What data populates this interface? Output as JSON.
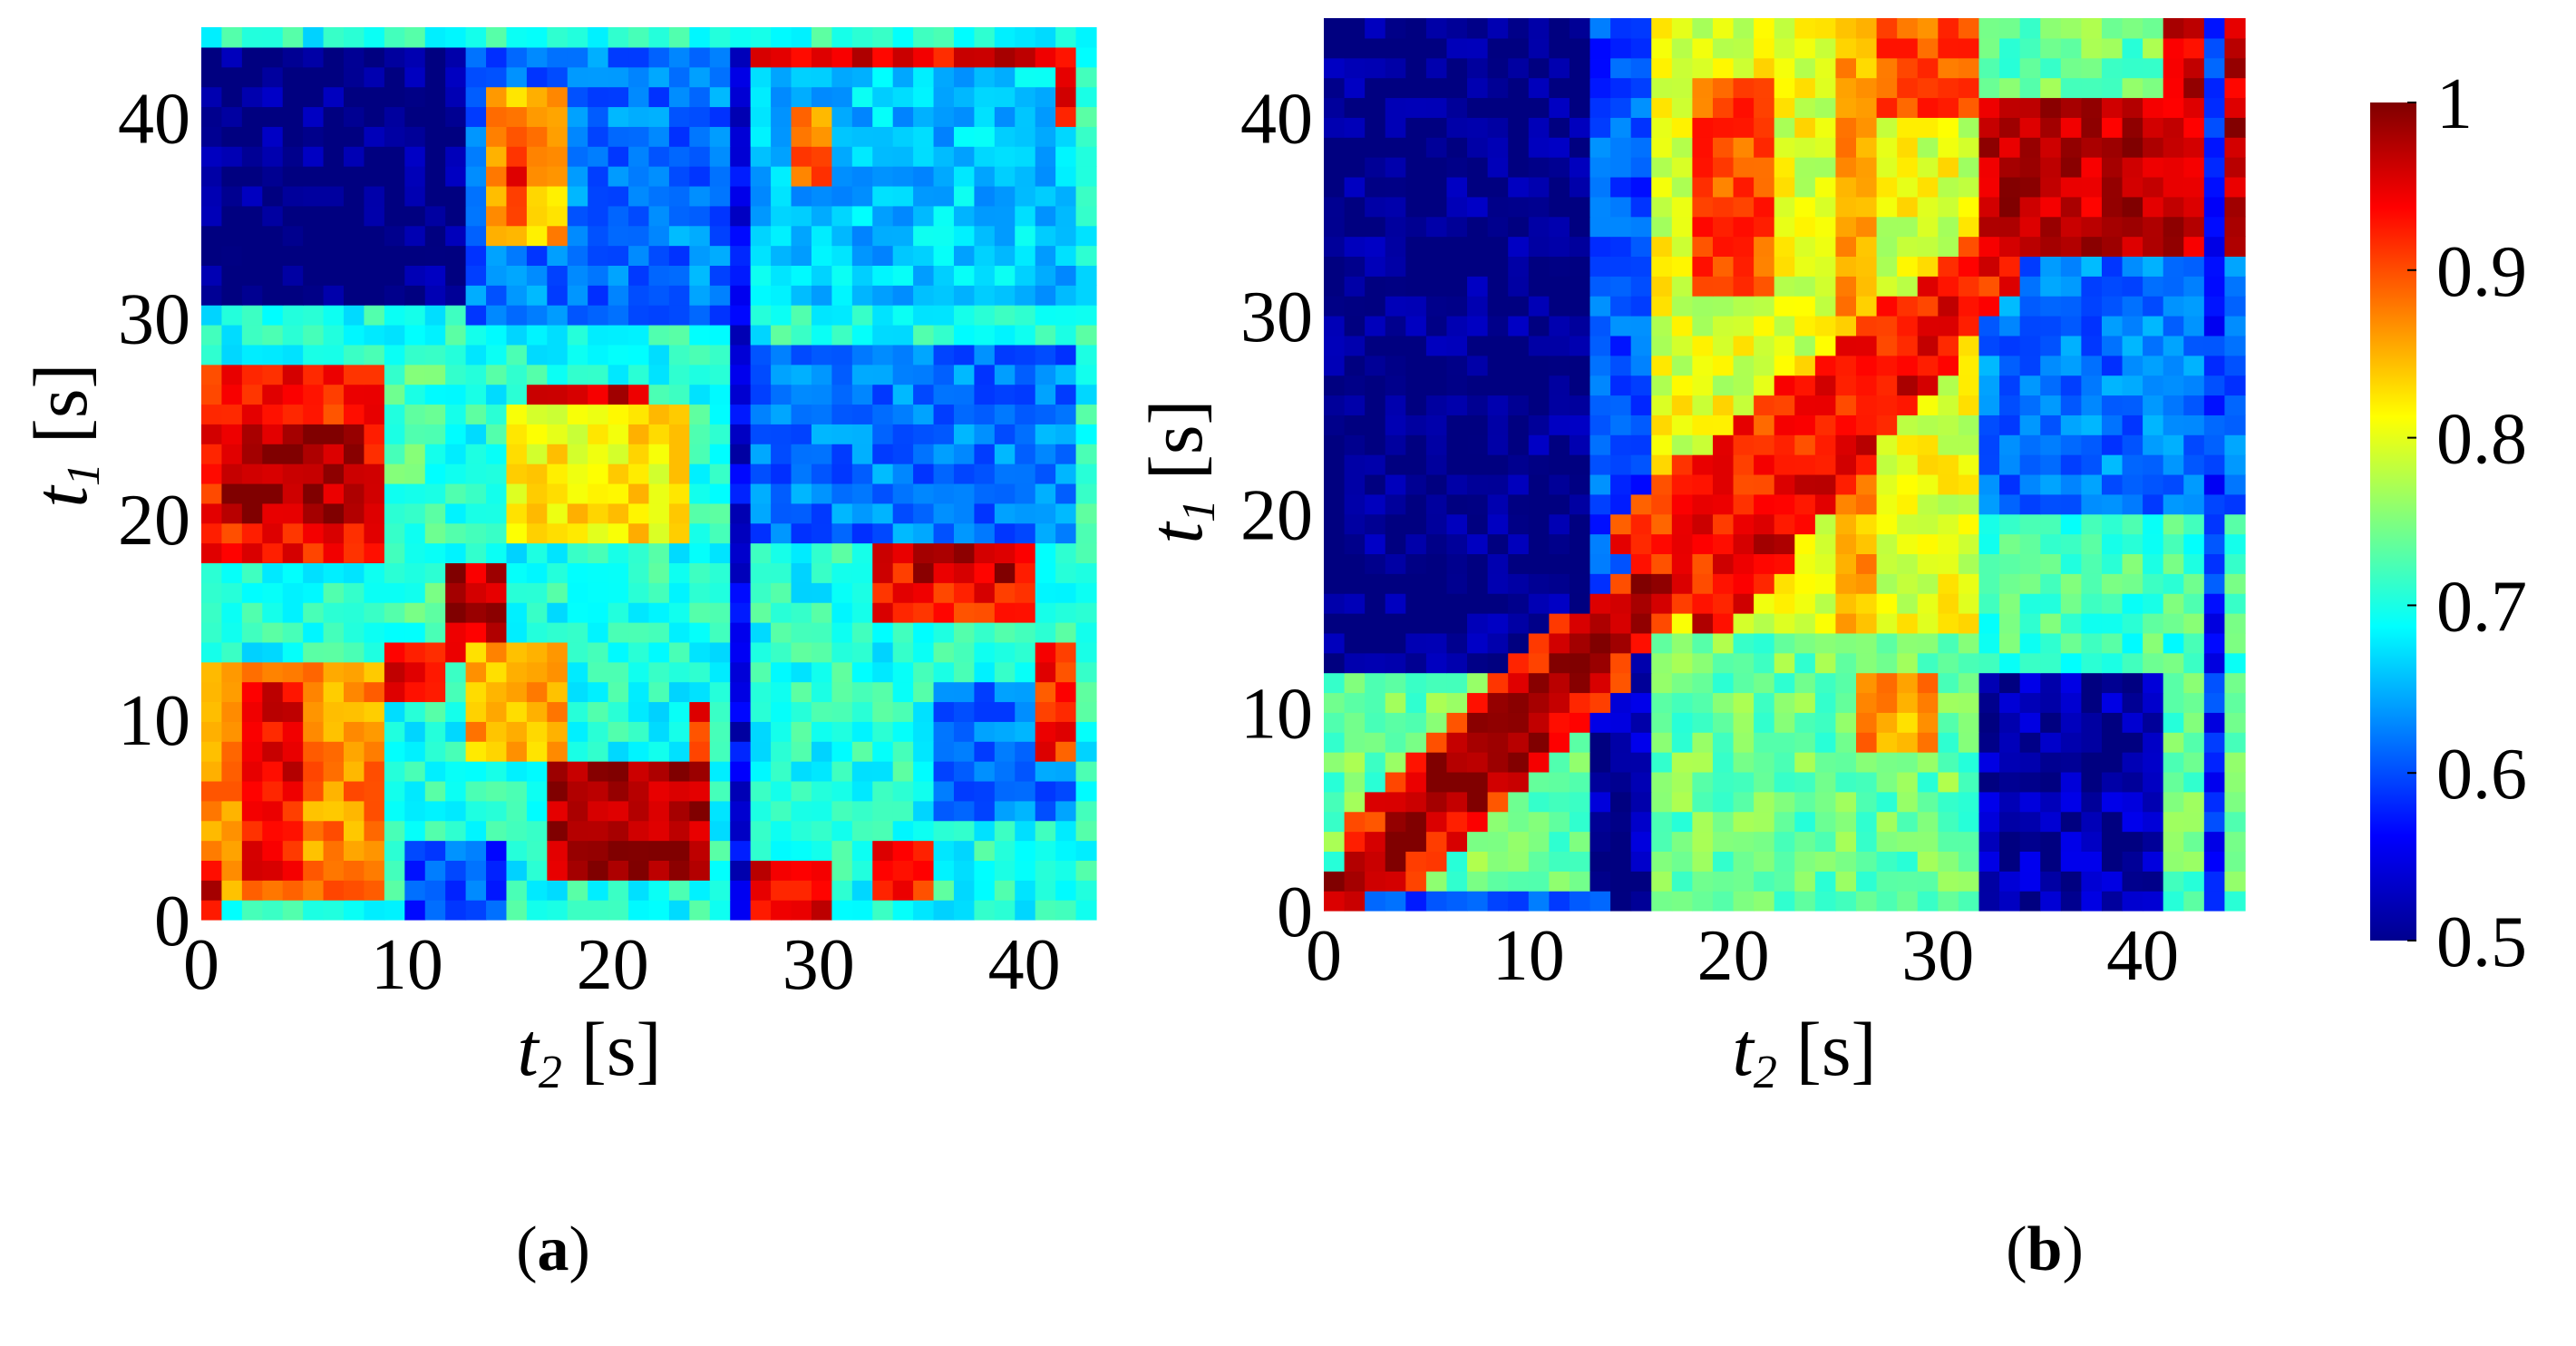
{
  "chart_data": [
    {
      "panel": "(a)",
      "panel_letter": "a",
      "type": "heatmap",
      "xlabel": "t2 [s]",
      "ylabel": "t1 [s]",
      "xlim": [
        0,
        43.5
      ],
      "ylim": [
        0,
        44.5
      ],
      "xticks": [
        "0",
        "10",
        "20",
        "30",
        "40"
      ],
      "yticks": [
        "0",
        "10",
        "20",
        "30",
        "40"
      ],
      "grid_resolution_s": 1.0,
      "background_value": 0.7,
      "regions": [
        {
          "t2": [
            0,
            13
          ],
          "t1": [
            31,
            44.5
          ],
          "value": 0.5
        },
        {
          "t2": [
            13.5,
            26
          ],
          "t1": [
            30,
            44.5
          ],
          "value": 0.62
        },
        {
          "t2": [
            14.5,
            18
          ],
          "t1": [
            34,
            42
          ],
          "value": 0.85
        },
        {
          "t2": [
            15.5,
            16.5
          ],
          "t1": [
            35,
            40
          ],
          "value": 0.93
        },
        {
          "t2": [
            26.5,
            43.5
          ],
          "t1": [
            31,
            43.5
          ],
          "value": 0.66
        },
        {
          "t2": [
            29,
            31
          ],
          "t1": [
            37,
            41
          ],
          "value": 0.88
        },
        {
          "t2": [
            26,
            43.5
          ],
          "t1": [
            43,
            44.5
          ],
          "value": 0.95
        },
        {
          "t2": [
            42,
            43.5
          ],
          "t1": [
            40,
            43
          ],
          "value": 0.95
        },
        {
          "t2": [
            0,
            9.5
          ],
          "t1": [
            18,
            28
          ],
          "value": 0.93
        },
        {
          "t2": [
            1,
            8
          ],
          "t1": [
            20,
            25
          ],
          "value": 0.98
        },
        {
          "t2": [
            9.5,
            12
          ],
          "t1": [
            15,
            28
          ],
          "value": 0.72
        },
        {
          "t2": [
            15,
            24
          ],
          "t1": [
            19,
            26
          ],
          "value": 0.82
        },
        {
          "t2": [
            16,
            22
          ],
          "t1": [
            26,
            27
          ],
          "value": 0.97
        },
        {
          "t2": [
            26,
            43
          ],
          "t1": [
            19,
            29
          ],
          "value": 0.62
        },
        {
          "t2": [
            33,
            41
          ],
          "t1": [
            15,
            19
          ],
          "value": 0.93
        },
        {
          "t2": [
            35,
            40
          ],
          "t1": [
            17,
            19
          ],
          "value": 0.97
        },
        {
          "t2": [
            26,
            27.5
          ],
          "t1": [
            0,
            44
          ],
          "value": 0.55
        },
        {
          "t2": [
            0,
            9.5
          ],
          "t1": [
            1,
            13
          ],
          "value": 0.87
        },
        {
          "t2": [
            2,
            5
          ],
          "t1": [
            2,
            12
          ],
          "value": 0.94
        },
        {
          "t2": [
            9.5,
            12.5
          ],
          "t1": [
            11,
            14
          ],
          "value": 0.95
        },
        {
          "t2": [
            12.5,
            15.5
          ],
          "t1": [
            13,
            18
          ],
          "value": 0.97
        },
        {
          "t2": [
            13.5,
            18
          ],
          "t1": [
            8,
            14
          ],
          "value": 0.85
        },
        {
          "t2": [
            17.5,
            25
          ],
          "t1": [
            2,
            8
          ],
          "value": 0.98
        },
        {
          "t2": [
            24,
            25.5
          ],
          "t1": [
            8,
            11
          ],
          "value": 0.92
        },
        {
          "t2": [
            27.5,
            31
          ],
          "t1": [
            0,
            3
          ],
          "value": 0.95
        },
        {
          "t2": [
            33,
            36
          ],
          "t1": [
            1,
            4
          ],
          "value": 0.93
        },
        {
          "t2": [
            10,
            15
          ],
          "t1": [
            0,
            4
          ],
          "value": 0.6
        },
        {
          "t2": [
            36,
            43.5
          ],
          "t1": [
            5,
            12
          ],
          "value": 0.62
        },
        {
          "t2": [
            41.5,
            43.5
          ],
          "t1": [
            8,
            14
          ],
          "value": 0.92
        },
        {
          "t2": [
            0,
            1.5
          ],
          "t1": [
            0,
            3
          ],
          "value": 0.96
        }
      ]
    },
    {
      "panel": "(b)",
      "panel_letter": "b",
      "type": "heatmap",
      "xlabel": "t2 [s]",
      "ylabel": "t1 [s]",
      "xlim": [
        0,
        45
      ],
      "ylim": [
        0,
        45
      ],
      "xticks": [
        "0",
        "10",
        "20",
        "30",
        "40"
      ],
      "yticks": [
        "0",
        "10",
        "20",
        "30",
        "40"
      ],
      "grid_resolution_s": 1.0,
      "background_value": 0.74,
      "regions": [
        {
          "t2": [
            0,
            13.5
          ],
          "t1": [
            12,
            45
          ],
          "value": 0.5
        },
        {
          "t2": [
            13.5,
            16
          ],
          "t1": [
            0,
            13
          ],
          "value": 0.52
        },
        {
          "t2": [
            0,
            14
          ],
          "t1": [
            0,
            1
          ],
          "value": 0.6
        },
        {
          "t2": [
            13.5,
            16
          ],
          "t1": [
            14,
            45
          ],
          "value": 0.6
        },
        {
          "t2": [
            16,
            32
          ],
          "t1": [
            14,
            45
          ],
          "value": 0.8
        },
        {
          "t2": [
            18,
            22
          ],
          "t1": [
            31,
            42
          ],
          "value": 0.9
        },
        {
          "t2": [
            25,
            27
          ],
          "t1": [
            14,
            45
          ],
          "value": 0.86
        },
        {
          "t2": [
            27,
            32
          ],
          "t1": [
            40,
            45
          ],
          "value": 0.9
        },
        {
          "t2": [
            32.5,
            45
          ],
          "t1": [
            33,
            41
          ],
          "value": 0.97
        },
        {
          "t2": [
            41,
            45
          ],
          "t1": [
            41,
            45
          ],
          "value": 0.96
        },
        {
          "t2": [
            32.5,
            45
          ],
          "t1": [
            20,
            33
          ],
          "value": 0.62
        },
        {
          "t2": [
            32.5,
            41
          ],
          "t1": [
            0,
            12
          ],
          "value": 0.52
        },
        {
          "t2": [
            32.5,
            45
          ],
          "t1": [
            12,
            20
          ],
          "value": 0.72
        },
        {
          "t2": [
            16,
            32
          ],
          "t1": [
            0,
            14
          ],
          "value": 0.74
        },
        {
          "t2": [
            26,
            30
          ],
          "t1": [
            8,
            12
          ],
          "value": 0.86
        },
        {
          "t2": [
            43,
            44
          ],
          "t1": [
            0,
            45
          ],
          "value": 0.58
        }
      ],
      "diagonal": [
        {
          "from": [
            0,
            0
          ],
          "to": [
            16,
            16
          ],
          "width": 2.2,
          "value": 0.98
        },
        {
          "from": [
            4,
            4
          ],
          "to": [
            12,
            12
          ],
          "width": 5.5,
          "value": 0.93
        },
        {
          "from": [
            6,
            6
          ],
          "to": [
            10,
            10
          ],
          "width": 3,
          "value": 0.99
        },
        {
          "from": [
            14,
            14
          ],
          "to": [
            32,
            32
          ],
          "width": 3.5,
          "value": 0.93
        },
        {
          "from": [
            19,
            15
          ],
          "to": [
            31,
            30
          ],
          "width": 2.5,
          "value": 0.95
        },
        {
          "from": [
            15,
            19
          ],
          "to": [
            30,
            31
          ],
          "width": 2.5,
          "value": 0.92
        }
      ]
    }
  ],
  "colorbar": {
    "min": 0.5,
    "max": 1,
    "ticks": [
      "1",
      "0.9",
      "0.8",
      "0.7",
      "0.6",
      "0.5"
    ],
    "colormap": "jet"
  },
  "labels": {
    "t1_base": "t",
    "t1_sub": "1",
    "t2_base": "t",
    "t2_sub": "2",
    "unit": " [s]",
    "paren_open": "(",
    "paren_close": ")"
  }
}
